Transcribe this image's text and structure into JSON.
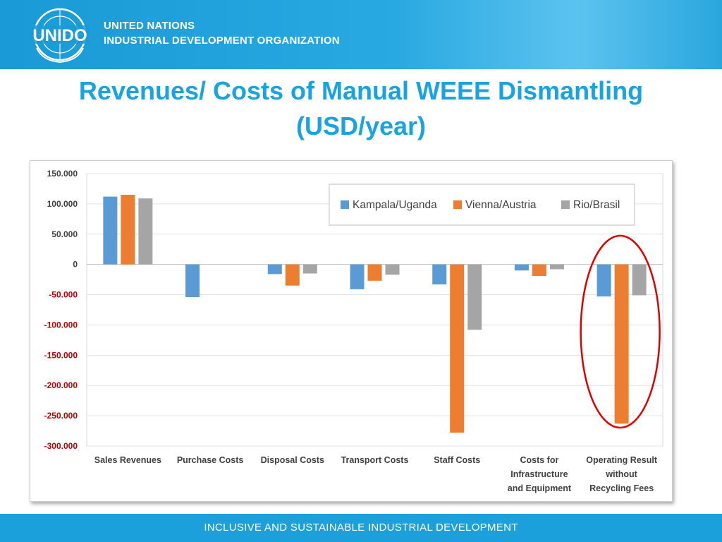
{
  "header": {
    "logo_text": "UNIDO",
    "org_line1": "UNITED NATIONS",
    "org_line2": "INDUSTRIAL DEVELOPMENT ORGANIZATION"
  },
  "slide": {
    "title_line1": "Revenues/ Costs of Manual WEEE Dismantling",
    "title_line2": "(USD/year)"
  },
  "footer": {
    "tagline": "INCLUSIVE AND SUSTAINABLE INDUSTRIAL DEVELOPMENT"
  },
  "colors": {
    "header_blue": "#1a9ad6",
    "title_blue": "#1aa3df",
    "negative_tick": "#c00000",
    "highlight_ellipse": "#e00000"
  },
  "chart_data": {
    "type": "bar",
    "categories": [
      [
        "Sales Revenues"
      ],
      [
        "Purchase Costs"
      ],
      [
        "Disposal Costs"
      ],
      [
        "Transport Costs"
      ],
      [
        "Staff Costs"
      ],
      [
        "Costs for",
        "Infrastructure",
        "and Equipment"
      ],
      [
        "Operating Result",
        "without",
        "Recycling Fees"
      ]
    ],
    "series": [
      {
        "name": "Kampala/Uganda",
        "color": "#5b9bd5",
        "values": [
          112000,
          -54000,
          -16000,
          -41000,
          -33000,
          -10000,
          -53000
        ]
      },
      {
        "name": "Vienna/Austria",
        "color": "#ed7d31",
        "values": [
          115000,
          null,
          -35000,
          -27000,
          -278000,
          -19000,
          -263000
        ]
      },
      {
        "name": "Rio/Brasil",
        "color": "#a5a5a5",
        "values": [
          109000,
          null,
          -15000,
          -17000,
          -108000,
          -8000,
          -51000
        ]
      }
    ],
    "ylim": [
      -300000,
      150000
    ],
    "yticks": [
      150000,
      100000,
      50000,
      0,
      -50000,
      -100000,
      -150000,
      -200000,
      -250000,
      -300000
    ],
    "ytick_labels": [
      "150.000",
      "100.000",
      "50.000",
      "0",
      "-50.000",
      "-100.000",
      "-150.000",
      "-200.000",
      "-250.000",
      "-300.000"
    ],
    "grid": true,
    "legend_position": "top-right",
    "highlighted_category": 6
  }
}
